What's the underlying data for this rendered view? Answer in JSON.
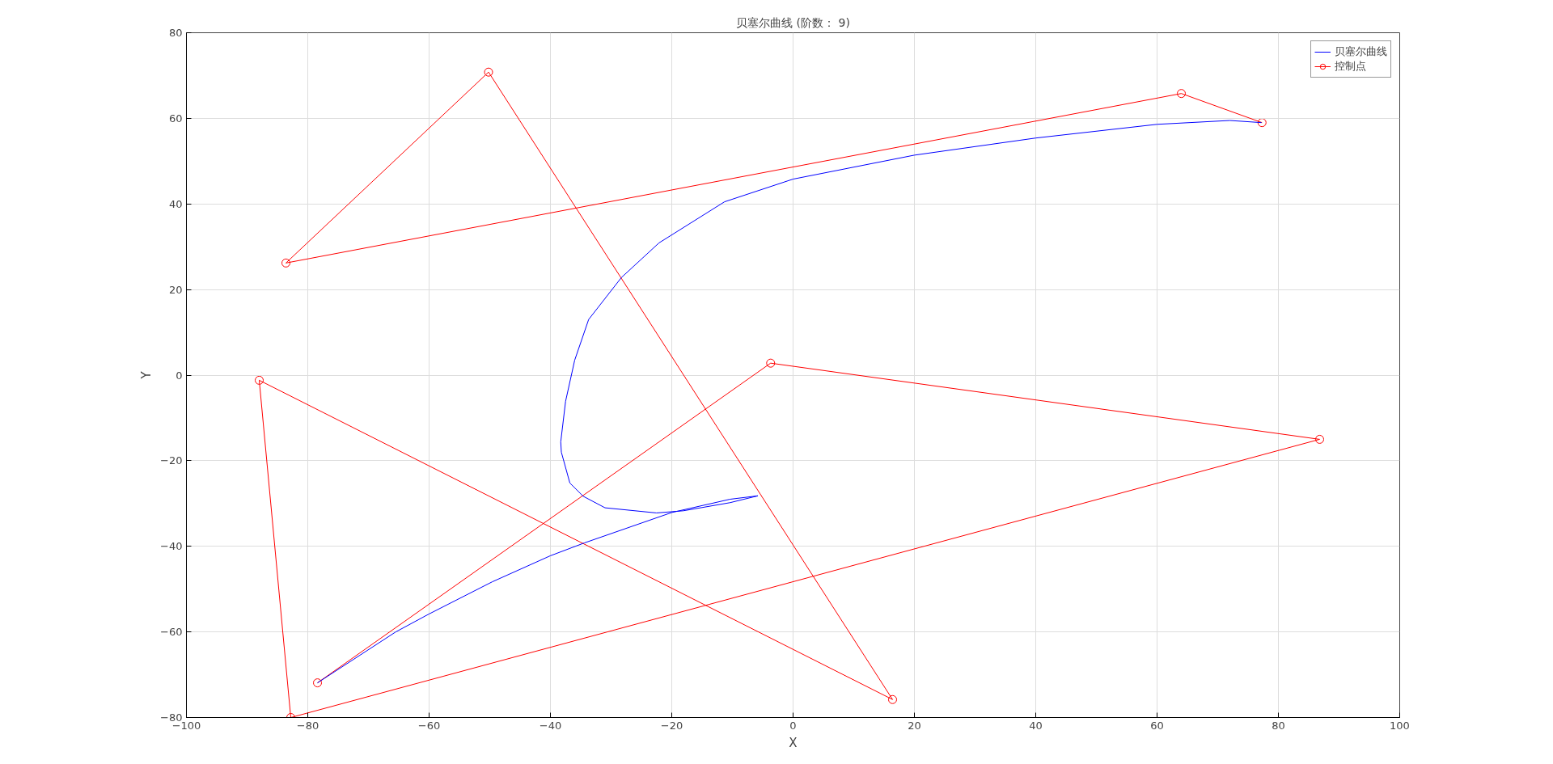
{
  "chart_data": {
    "type": "line",
    "title": "贝塞尔曲线 (阶数： 9)",
    "xlabel": "X",
    "ylabel": "Y",
    "xlim": [
      -100,
      100
    ],
    "ylim": [
      -80,
      80
    ],
    "xticks": [
      -100,
      -80,
      -60,
      -40,
      -20,
      0,
      20,
      40,
      60,
      80,
      100
    ],
    "yticks": [
      -80,
      -60,
      -40,
      -20,
      0,
      20,
      40,
      60,
      80
    ],
    "grid": true,
    "legend": "top right",
    "series": [
      {
        "name": "贝塞尔曲线",
        "color": "#0000ff",
        "marker": "none",
        "x": [
          -78.4,
          -65.5,
          -60,
          -49.6,
          -40,
          -34.4,
          -20,
          -10.4,
          -5.8,
          -10.4,
          -18.1,
          -22.5,
          -31,
          -34.6,
          -36.8,
          -38.2,
          -38.3,
          -37.5,
          -36,
          -33.7,
          -28.3,
          -22.1,
          -11.3,
          0,
          20,
          40,
          60,
          72,
          77.2
        ],
        "values": [
          -71.9,
          -60,
          -55.8,
          -48.3,
          -42.2,
          -39.2,
          -32.1,
          -29,
          -28.2,
          -29.8,
          -31.7,
          -32.2,
          -31,
          -28.3,
          -25.2,
          -18,
          -15.6,
          -6.1,
          3.5,
          13,
          22.8,
          30.9,
          40.5,
          45.8,
          51.4,
          55.4,
          58.6,
          59.5,
          59
        ]
      },
      {
        "name": "控制点",
        "color": "#ff0000",
        "marker": "circle",
        "x": [
          -78.4,
          -3.7,
          86.8,
          -82.8,
          -88,
          16.4,
          -50.2,
          -83.6,
          64,
          77.3
        ],
        "values": [
          -71.9,
          2.8,
          -15,
          -80,
          -1.2,
          -75.8,
          70.8,
          26.2,
          65.8,
          59
        ]
      }
    ]
  }
}
